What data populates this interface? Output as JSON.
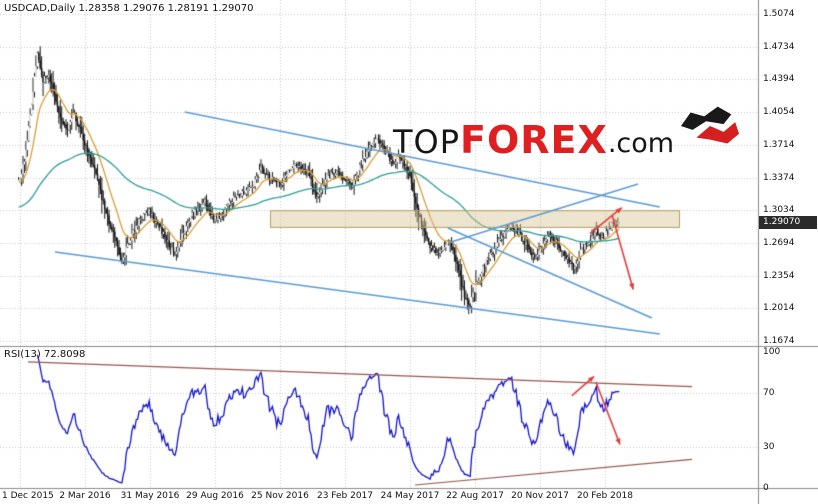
{
  "app": {
    "title_line": "USDCAD,Daily 1.28358 1.29076 1.28191 1.29070"
  },
  "watermark": {
    "top": "TOP",
    "forex": "FOREX",
    "com": ".com",
    "accent": "#e02020"
  },
  "price_badge": "1.29070",
  "rsi_title": "RSI(13) 72.8098",
  "chart_data": {
    "type": "candlestick",
    "symbol": "USDCAD",
    "timeframe": "Daily",
    "ohlc": {
      "open": 1.28358,
      "high": 1.29076,
      "low": 1.28191,
      "close": 1.2907
    },
    "last_price": 1.2907,
    "price_axis": {
      "min": 1.1674,
      "max": 1.5074,
      "ticks": [
        "1.5074",
        "1.4734",
        "1.4394",
        "1.4054",
        "1.3714",
        "1.3374",
        "1.3034",
        "1.2694",
        "1.2354",
        "1.2014",
        "1.1674"
      ]
    },
    "date_axis": {
      "ticks": [
        {
          "label": "1 Dec 2015",
          "t": 0.0033
        },
        {
          "label": "2 Mar 2016",
          "t": 0.1113
        },
        {
          "label": "31 May 2016",
          "t": 0.2193
        },
        {
          "label": "29 Aug 2016",
          "t": 0.3272
        },
        {
          "label": "25 Nov 2016",
          "t": 0.4352
        },
        {
          "label": "23 Feb 2017",
          "t": 0.5432
        },
        {
          "label": "24 May 2017",
          "t": 0.6512
        },
        {
          "label": "22 Aug 2017",
          "t": 0.7592
        },
        {
          "label": "20 Nov 2017",
          "t": 0.8671
        },
        {
          "label": "20 Feb 2018",
          "t": 0.9751
        }
      ]
    },
    "grid_color": "#c9c9c9",
    "candles": {
      "count": 420,
      "seed": 13,
      "noise": 0.004,
      "color_down": "#111111",
      "color_up": "#ffffff",
      "outline": "#1a1a1a",
      "price_path": [
        [
          0.0,
          1.332
        ],
        [
          0.01,
          1.352
        ],
        [
          0.02,
          1.4
        ],
        [
          0.032,
          1.467
        ],
        [
          0.042,
          1.438
        ],
        [
          0.05,
          1.445
        ],
        [
          0.062,
          1.42
        ],
        [
          0.072,
          1.398
        ],
        [
          0.082,
          1.388
        ],
        [
          0.093,
          1.404
        ],
        [
          0.104,
          1.386
        ],
        [
          0.118,
          1.36
        ],
        [
          0.13,
          1.34
        ],
        [
          0.145,
          1.302
        ],
        [
          0.16,
          1.275
        ],
        [
          0.172,
          1.252
        ],
        [
          0.185,
          1.27
        ],
        [
          0.2,
          1.292
        ],
        [
          0.217,
          1.302
        ],
        [
          0.234,
          1.288
        ],
        [
          0.248,
          1.271
        ],
        [
          0.26,
          1.257
        ],
        [
          0.276,
          1.283
        ],
        [
          0.292,
          1.301
        ],
        [
          0.31,
          1.312
        ],
        [
          0.326,
          1.293
        ],
        [
          0.342,
          1.302
        ],
        [
          0.358,
          1.316
        ],
        [
          0.375,
          1.322
        ],
        [
          0.392,
          1.331
        ],
        [
          0.404,
          1.346
        ],
        [
          0.418,
          1.337
        ],
        [
          0.434,
          1.329
        ],
        [
          0.45,
          1.344
        ],
        [
          0.466,
          1.352
        ],
        [
          0.483,
          1.341
        ],
        [
          0.497,
          1.316
        ],
        [
          0.513,
          1.338
        ],
        [
          0.529,
          1.342
        ],
        [
          0.542,
          1.335
        ],
        [
          0.554,
          1.328
        ],
        [
          0.567,
          1.348
        ],
        [
          0.583,
          1.368
        ],
        [
          0.597,
          1.376
        ],
        [
          0.609,
          1.366
        ],
        [
          0.624,
          1.352
        ],
        [
          0.633,
          1.359
        ],
        [
          0.65,
          1.342
        ],
        [
          0.666,
          1.298
        ],
        [
          0.682,
          1.268
        ],
        [
          0.699,
          1.259
        ],
        [
          0.716,
          1.271
        ],
        [
          0.729,
          1.248
        ],
        [
          0.74,
          1.218
        ],
        [
          0.75,
          1.203
        ],
        [
          0.762,
          1.228
        ],
        [
          0.777,
          1.251
        ],
        [
          0.79,
          1.261
        ],
        [
          0.807,
          1.279
        ],
        [
          0.819,
          1.289
        ],
        [
          0.832,
          1.279
        ],
        [
          0.845,
          1.267
        ],
        [
          0.857,
          1.253
        ],
        [
          0.873,
          1.269
        ],
        [
          0.885,
          1.279
        ],
        [
          0.898,
          1.267
        ],
        [
          0.911,
          1.254
        ],
        [
          0.923,
          1.243
        ],
        [
          0.935,
          1.261
        ],
        [
          0.948,
          1.271
        ],
        [
          0.961,
          1.281
        ],
        [
          0.973,
          1.275
        ],
        [
          0.985,
          1.286
        ],
        [
          1.0,
          1.291
        ]
      ]
    },
    "moving_averages": [
      {
        "name": "ma-fast",
        "period": 16,
        "color": "#d99f35",
        "init": 1.332
      },
      {
        "name": "ma-slow",
        "period": 110,
        "color": "#2f9e98",
        "init": 1.306
      }
    ],
    "trendlines": {
      "color": "#5b9bd5",
      "lines": [
        {
          "from": [
            0.277,
            1.4055
          ],
          "to": [
            1.066,
            1.3067
          ]
        },
        {
          "from": [
            0.0615,
            1.2599
          ],
          "to": [
            1.066,
            1.1747
          ]
        },
        {
          "from": [
            0.714,
            1.2849
          ],
          "to": [
            1.053,
            1.1913
          ]
        },
        {
          "from": [
            0.714,
            1.2693
          ],
          "to": [
            1.03,
            1.3306
          ]
        }
      ]
    },
    "zone": {
      "t1": 0.4186,
      "t2": 1.0997,
      "price_low": 1.285,
      "price_high": 1.3034,
      "fill": "rgba(214,198,150,0.45)",
      "border": "#b79e63"
    },
    "arrows": {
      "color": "#e43b3b",
      "main": [
        {
          "from": [
            0.95,
            1.279
          ],
          "to": [
            1.003,
            1.306
          ]
        },
        {
          "from": [
            0.987,
            1.298
          ],
          "to": [
            1.022,
            1.221
          ]
        }
      ]
    },
    "rsi": {
      "period": 13,
      "current": 72.8098,
      "color": "#1414cc",
      "axis_ticks": [
        "100",
        "70",
        "30",
        "0"
      ],
      "levels": [
        70,
        30
      ],
      "range": [
        0,
        100
      ],
      "trend_color": "#97564e",
      "trendlines": [
        {
          "from": [
            0.0166,
            92.8
          ],
          "to": [
            1.1196,
            74.6
          ]
        },
        {
          "from": [
            0.6595,
            2.2
          ],
          "to": [
            1.1196,
            21.0
          ]
        }
      ],
      "arrows": [
        {
          "from": [
            0.92,
            68
          ],
          "to": [
            0.957,
            82
          ]
        },
        {
          "from": [
            0.96,
            78
          ],
          "to": [
            1.0,
            32
          ]
        }
      ]
    }
  }
}
